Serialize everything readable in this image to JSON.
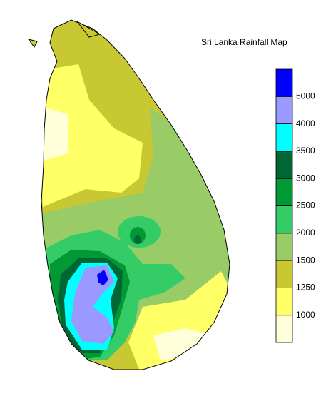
{
  "title": "Sri Lanka Rainfall Map",
  "legend": {
    "ticks": [
      1000,
      1250,
      1500,
      2000,
      2500,
      3000,
      3500,
      4000,
      5000
    ],
    "colors": [
      "#ffffd9",
      "#ffff66",
      "#c8c832",
      "#99cc66",
      "#33cc66",
      "#009933",
      "#006633",
      "#00ffff",
      "#9999ff",
      "#0000ff"
    ]
  }
}
